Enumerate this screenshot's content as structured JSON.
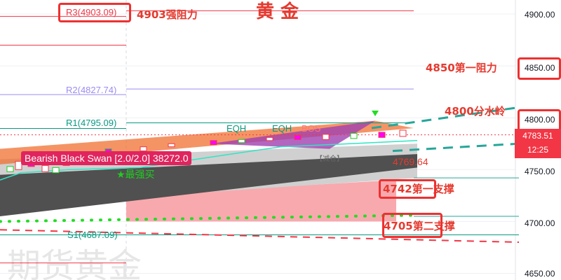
{
  "chart_data": {
    "type": "line",
    "title": "黄 金",
    "watermark": "期货黄金",
    "ylim": [
      4640,
      4913
    ],
    "y_ticks": [
      "4900.00",
      "4850.00",
      "4800.00",
      "4750.00",
      "4700.00",
      "4650.00"
    ],
    "grid": true,
    "pivots": [
      {
        "label": "R3(4903.09)",
        "value": 4903.09,
        "color": "#f23645"
      },
      {
        "label": "R2(4827.74)",
        "value": 4827.74,
        "color": "#9c8cf0"
      },
      {
        "label": "R1(4795.09)",
        "value": 4795.09,
        "color": "#089981"
      },
      {
        "label": "S1(4687.09)",
        "value": 4687.09,
        "color": "#089981"
      }
    ],
    "annotations": [
      {
        "text": "4903强阻力",
        "value": 4903
      },
      {
        "text": "4850第一阻力",
        "value": 4850
      },
      {
        "text": "4800分水岭",
        "value": 4800
      },
      {
        "text": "4742第一支撑",
        "value": 4742
      },
      {
        "text": "4705第二支撑",
        "value": 4705
      }
    ],
    "labels": {
      "eqh1": "EQH",
      "eqh2": "EQH",
      "bos": "BOS",
      "swan": "Bearish Black Swan [2.0/2.0] 38272.0",
      "buy": "★最强买",
      "reduce": "【减仓】",
      "price_mark": "4769.64"
    },
    "last_price": {
      "value": "4783.51",
      "countdown": "12:25",
      "color": "#f23645"
    },
    "colors": {
      "annotation": "#e53a2f",
      "cloud_dark": "#505050",
      "cloud_light": "#d0d0d0",
      "band_red": "#f7a0a5",
      "band_orange": "#f07030"
    }
  }
}
